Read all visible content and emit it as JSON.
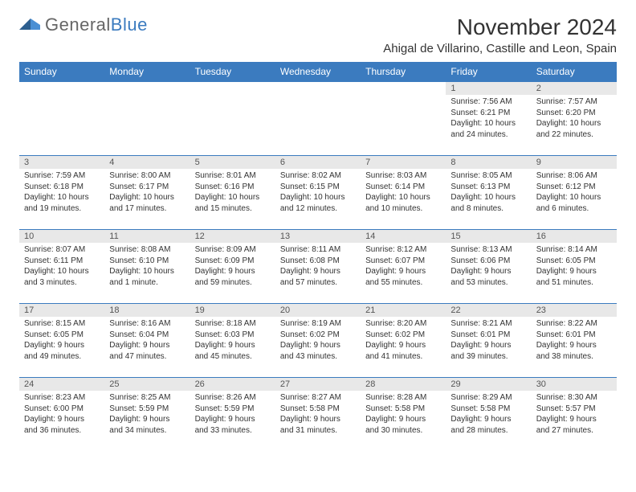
{
  "logo": {
    "text1": "General",
    "text2": "Blue"
  },
  "title": "November 2024",
  "location": "Ahigal de Villarino, Castille and Leon, Spain",
  "day_headers": [
    "Sunday",
    "Monday",
    "Tuesday",
    "Wednesday",
    "Thursday",
    "Friday",
    "Saturday"
  ],
  "colors": {
    "header_bg": "#3b7bbf",
    "header_text": "#ffffff",
    "daynum_bg": "#e8e8e8",
    "border": "#3b7bbf",
    "logo_gray": "#666666",
    "logo_blue": "#3b7bbf"
  },
  "typography": {
    "title_fontsize": 28,
    "location_fontsize": 15,
    "header_fontsize": 12,
    "daynum_fontsize": 11,
    "daytext_fontsize": 10
  },
  "weeks": [
    [
      null,
      null,
      null,
      null,
      null,
      {
        "num": "1",
        "sunrise": "Sunrise: 7:56 AM",
        "sunset": "Sunset: 6:21 PM",
        "daylight": "Daylight: 10 hours and 24 minutes."
      },
      {
        "num": "2",
        "sunrise": "Sunrise: 7:57 AM",
        "sunset": "Sunset: 6:20 PM",
        "daylight": "Daylight: 10 hours and 22 minutes."
      }
    ],
    [
      {
        "num": "3",
        "sunrise": "Sunrise: 7:59 AM",
        "sunset": "Sunset: 6:18 PM",
        "daylight": "Daylight: 10 hours and 19 minutes."
      },
      {
        "num": "4",
        "sunrise": "Sunrise: 8:00 AM",
        "sunset": "Sunset: 6:17 PM",
        "daylight": "Daylight: 10 hours and 17 minutes."
      },
      {
        "num": "5",
        "sunrise": "Sunrise: 8:01 AM",
        "sunset": "Sunset: 6:16 PM",
        "daylight": "Daylight: 10 hours and 15 minutes."
      },
      {
        "num": "6",
        "sunrise": "Sunrise: 8:02 AM",
        "sunset": "Sunset: 6:15 PM",
        "daylight": "Daylight: 10 hours and 12 minutes."
      },
      {
        "num": "7",
        "sunrise": "Sunrise: 8:03 AM",
        "sunset": "Sunset: 6:14 PM",
        "daylight": "Daylight: 10 hours and 10 minutes."
      },
      {
        "num": "8",
        "sunrise": "Sunrise: 8:05 AM",
        "sunset": "Sunset: 6:13 PM",
        "daylight": "Daylight: 10 hours and 8 minutes."
      },
      {
        "num": "9",
        "sunrise": "Sunrise: 8:06 AM",
        "sunset": "Sunset: 6:12 PM",
        "daylight": "Daylight: 10 hours and 6 minutes."
      }
    ],
    [
      {
        "num": "10",
        "sunrise": "Sunrise: 8:07 AM",
        "sunset": "Sunset: 6:11 PM",
        "daylight": "Daylight: 10 hours and 3 minutes."
      },
      {
        "num": "11",
        "sunrise": "Sunrise: 8:08 AM",
        "sunset": "Sunset: 6:10 PM",
        "daylight": "Daylight: 10 hours and 1 minute."
      },
      {
        "num": "12",
        "sunrise": "Sunrise: 8:09 AM",
        "sunset": "Sunset: 6:09 PM",
        "daylight": "Daylight: 9 hours and 59 minutes."
      },
      {
        "num": "13",
        "sunrise": "Sunrise: 8:11 AM",
        "sunset": "Sunset: 6:08 PM",
        "daylight": "Daylight: 9 hours and 57 minutes."
      },
      {
        "num": "14",
        "sunrise": "Sunrise: 8:12 AM",
        "sunset": "Sunset: 6:07 PM",
        "daylight": "Daylight: 9 hours and 55 minutes."
      },
      {
        "num": "15",
        "sunrise": "Sunrise: 8:13 AM",
        "sunset": "Sunset: 6:06 PM",
        "daylight": "Daylight: 9 hours and 53 minutes."
      },
      {
        "num": "16",
        "sunrise": "Sunrise: 8:14 AM",
        "sunset": "Sunset: 6:05 PM",
        "daylight": "Daylight: 9 hours and 51 minutes."
      }
    ],
    [
      {
        "num": "17",
        "sunrise": "Sunrise: 8:15 AM",
        "sunset": "Sunset: 6:05 PM",
        "daylight": "Daylight: 9 hours and 49 minutes."
      },
      {
        "num": "18",
        "sunrise": "Sunrise: 8:16 AM",
        "sunset": "Sunset: 6:04 PM",
        "daylight": "Daylight: 9 hours and 47 minutes."
      },
      {
        "num": "19",
        "sunrise": "Sunrise: 8:18 AM",
        "sunset": "Sunset: 6:03 PM",
        "daylight": "Daylight: 9 hours and 45 minutes."
      },
      {
        "num": "20",
        "sunrise": "Sunrise: 8:19 AM",
        "sunset": "Sunset: 6:02 PM",
        "daylight": "Daylight: 9 hours and 43 minutes."
      },
      {
        "num": "21",
        "sunrise": "Sunrise: 8:20 AM",
        "sunset": "Sunset: 6:02 PM",
        "daylight": "Daylight: 9 hours and 41 minutes."
      },
      {
        "num": "22",
        "sunrise": "Sunrise: 8:21 AM",
        "sunset": "Sunset: 6:01 PM",
        "daylight": "Daylight: 9 hours and 39 minutes."
      },
      {
        "num": "23",
        "sunrise": "Sunrise: 8:22 AM",
        "sunset": "Sunset: 6:01 PM",
        "daylight": "Daylight: 9 hours and 38 minutes."
      }
    ],
    [
      {
        "num": "24",
        "sunrise": "Sunrise: 8:23 AM",
        "sunset": "Sunset: 6:00 PM",
        "daylight": "Daylight: 9 hours and 36 minutes."
      },
      {
        "num": "25",
        "sunrise": "Sunrise: 8:25 AM",
        "sunset": "Sunset: 5:59 PM",
        "daylight": "Daylight: 9 hours and 34 minutes."
      },
      {
        "num": "26",
        "sunrise": "Sunrise: 8:26 AM",
        "sunset": "Sunset: 5:59 PM",
        "daylight": "Daylight: 9 hours and 33 minutes."
      },
      {
        "num": "27",
        "sunrise": "Sunrise: 8:27 AM",
        "sunset": "Sunset: 5:58 PM",
        "daylight": "Daylight: 9 hours and 31 minutes."
      },
      {
        "num": "28",
        "sunrise": "Sunrise: 8:28 AM",
        "sunset": "Sunset: 5:58 PM",
        "daylight": "Daylight: 9 hours and 30 minutes."
      },
      {
        "num": "29",
        "sunrise": "Sunrise: 8:29 AM",
        "sunset": "Sunset: 5:58 PM",
        "daylight": "Daylight: 9 hours and 28 minutes."
      },
      {
        "num": "30",
        "sunrise": "Sunrise: 8:30 AM",
        "sunset": "Sunset: 5:57 PM",
        "daylight": "Daylight: 9 hours and 27 minutes."
      }
    ]
  ]
}
